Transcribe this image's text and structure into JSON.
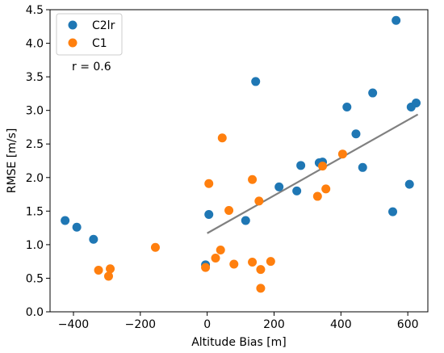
{
  "chart_data": {
    "type": "scatter",
    "title": "",
    "xlabel": "Altitude Bias [m]",
    "ylabel": "RMSE [m/s]",
    "xlim": [
      -470,
      660
    ],
    "ylim": [
      0.0,
      4.5
    ],
    "xticks": [
      -400,
      -200,
      0,
      200,
      400,
      600
    ],
    "xtick_labels": [
      "−400",
      "−200",
      "0",
      "200",
      "400",
      "600"
    ],
    "yticks": [
      0.0,
      0.5,
      1.0,
      1.5,
      2.0,
      2.5,
      3.0,
      3.5,
      4.0,
      4.5
    ],
    "ytick_labels": [
      "0.0",
      "0.5",
      "1.0",
      "1.5",
      "2.0",
      "2.5",
      "3.0",
      "3.5",
      "4.0",
      "4.5"
    ],
    "grid": false,
    "legend_position": "upper-left",
    "annotation": "r = 0.6",
    "series": [
      {
        "name": "C2lr",
        "color": "#1f77b4",
        "points": [
          [
            -425,
            1.36
          ],
          [
            -390,
            1.26
          ],
          [
            -340,
            1.08
          ],
          [
            -5,
            0.7
          ],
          [
            5,
            1.45
          ],
          [
            115,
            1.36
          ],
          [
            145,
            3.43
          ],
          [
            215,
            1.86
          ],
          [
            268,
            1.8
          ],
          [
            280,
            2.18
          ],
          [
            335,
            2.22
          ],
          [
            345,
            2.23
          ],
          [
            418,
            3.05
          ],
          [
            445,
            2.65
          ],
          [
            465,
            2.15
          ],
          [
            495,
            3.26
          ],
          [
            555,
            1.49
          ],
          [
            565,
            4.34
          ],
          [
            605,
            1.9
          ],
          [
            610,
            3.05
          ],
          [
            625,
            3.11
          ]
        ]
      },
      {
        "name": "C1",
        "color": "#ff7f0e",
        "points": [
          [
            -325,
            0.62
          ],
          [
            -295,
            0.53
          ],
          [
            -290,
            0.64
          ],
          [
            -155,
            0.96
          ],
          [
            -5,
            0.66
          ],
          [
            5,
            1.91
          ],
          [
            25,
            0.8
          ],
          [
            40,
            0.92
          ],
          [
            45,
            2.59
          ],
          [
            65,
            1.51
          ],
          [
            80,
            0.71
          ],
          [
            135,
            0.74
          ],
          [
            135,
            1.97
          ],
          [
            155,
            1.65
          ],
          [
            160,
            0.63
          ],
          [
            160,
            0.35
          ],
          [
            190,
            0.75
          ],
          [
            330,
            1.72
          ],
          [
            345,
            2.17
          ],
          [
            355,
            1.83
          ],
          [
            405,
            2.35
          ]
        ]
      }
    ],
    "fit_line": {
      "color": "#808080",
      "points": [
        [
          0,
          1.17
        ],
        [
          630,
          2.94
        ]
      ]
    }
  }
}
